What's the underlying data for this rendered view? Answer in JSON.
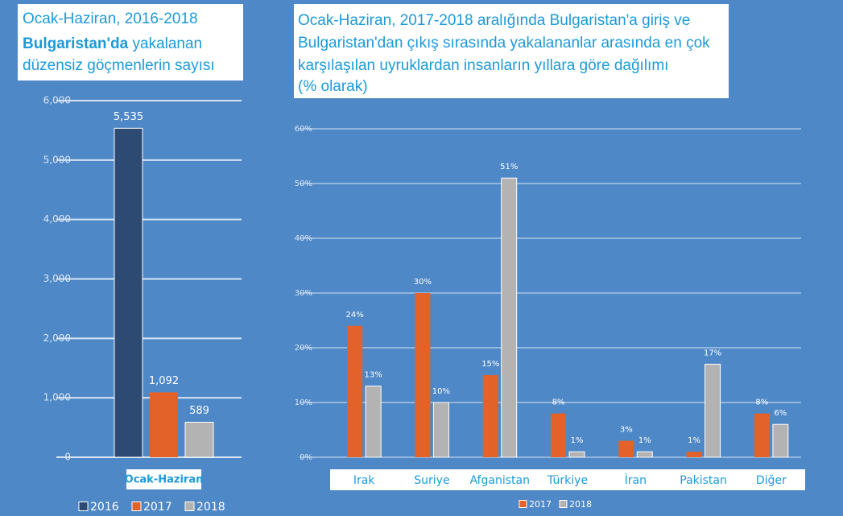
{
  "chart_data": [
    {
      "type": "bar",
      "title": [
        "Ocak-Haziran, 2016-2018",
        "Bulgaristan'da",
        "yakalanan",
        "düzensiz göçmenlerin sayısı"
      ],
      "categories": [
        "Ocak-Haziran"
      ],
      "series": [
        {
          "name": "2016",
          "color": "#2d4a72",
          "values": [
            5535
          ],
          "value_labels": [
            "5,535"
          ]
        },
        {
          "name": "2017",
          "color": "#e2622a",
          "values": [
            1092
          ],
          "value_labels": [
            "1,092"
          ]
        },
        {
          "name": "2018",
          "color": "#b3b3b3",
          "values": [
            589
          ],
          "value_labels": [
            "589"
          ]
        }
      ],
      "ylim": [
        0,
        6000
      ],
      "yticks": [
        0,
        {
          "value": 1000,
          "label": "1,000"
        },
        {
          "value": 2000,
          "label": "2,000"
        },
        {
          "value": 3000,
          "label": "3,000"
        },
        {
          "value": 4000,
          "label": "4,000"
        },
        {
          "value": 5000,
          "label": "5,000"
        },
        {
          "value": 6000,
          "label": "6,000"
        }
      ],
      "grid": true
    },
    {
      "type": "bar",
      "title": [
        "Ocak-Haziran, 2017-2018 aralığında Bulgaristan'a giriş ve",
        "Bulgaristan'dan çıkış sırasında yakalananlar arasında en çok",
        "karşılaşılan uyruklardan insanların yıllara göre dağılımı",
        "(% olarak)"
      ],
      "categories": [
        "Irak",
        "Suriye",
        "Afganistan",
        "Türkiye",
        "İran",
        "Pakistan",
        "Diğer"
      ],
      "series": [
        {
          "name": "2017",
          "color": "#e2622a",
          "values": [
            24,
            30,
            15,
            8,
            3,
            1,
            8
          ],
          "value_labels": [
            "24%",
            "30%",
            "15%",
            "8%",
            "3%",
            "1%",
            "8%"
          ]
        },
        {
          "name": "2018",
          "color": "#b3b3b3",
          "values": [
            13,
            10,
            51,
            1,
            1,
            17,
            6
          ],
          "value_labels": [
            "13%",
            "10%",
            "51%",
            "1%",
            "1%",
            "17%",
            "6%"
          ]
        }
      ],
      "ylim": [
        0,
        60
      ],
      "yticks": [
        {
          "value": 0,
          "label": "0%"
        },
        {
          "value": 10,
          "label": "10%"
        },
        {
          "value": 20,
          "label": "20%"
        },
        {
          "value": 30,
          "label": "30%"
        },
        {
          "value": 40,
          "label": "40%"
        },
        {
          "value": 50,
          "label": "50%"
        },
        {
          "value": 60,
          "label": "60%"
        }
      ],
      "grid": true
    }
  ]
}
